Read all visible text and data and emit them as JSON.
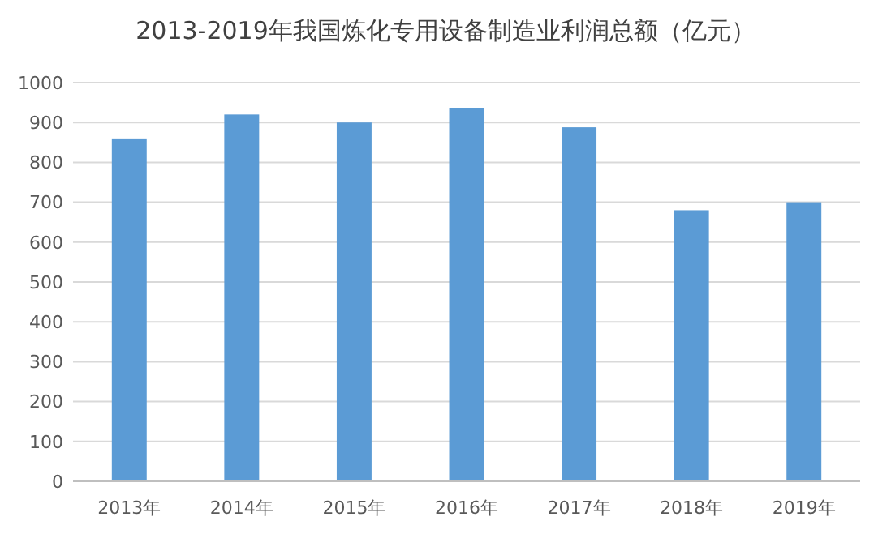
{
  "chart_data": {
    "type": "bar",
    "title": "2013-2019年我国炼化专用设备制造业利润总额（亿元）",
    "categories": [
      "2013年",
      "2014年",
      "2015年",
      "2016年",
      "2017年",
      "2018年",
      "2019年"
    ],
    "values": [
      860,
      920,
      900,
      937,
      888,
      680,
      700
    ],
    "color": "#5b9bd5",
    "ylim": [
      0,
      1000
    ],
    "yticks": [
      0,
      100,
      200,
      300,
      400,
      500,
      600,
      700,
      800,
      900,
      1000
    ],
    "grid": "y"
  }
}
